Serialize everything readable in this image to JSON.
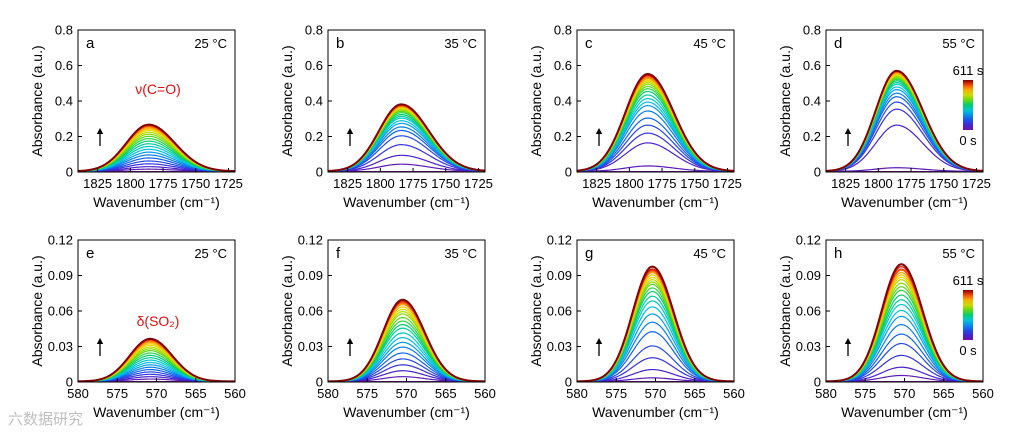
{
  "watermark": "六数据研究",
  "colors": {
    "annotation": "#e01010",
    "axis": "#000000"
  },
  "colorbar": {
    "top_label": "611 s",
    "bottom_label": "0 s"
  },
  "chart_data": [
    {
      "id": "a",
      "type": "line",
      "panel": "a",
      "temperature": "25 °C",
      "title": "",
      "xlabel": "Wavenumber (cm⁻¹)",
      "ylabel": "Absorbance (a.u.)",
      "xlim": [
        1840,
        1720
      ],
      "xticks": [
        1825,
        1800,
        1775,
        1750,
        1725
      ],
      "xtick_labels": [
        "1825",
        "1800",
        "1775",
        "1750",
        "1725"
      ],
      "ylim": [
        0,
        0.8
      ],
      "yticks": [
        0,
        0.2,
        0.4,
        0.6,
        0.8
      ],
      "ytick_labels": [
        "0",
        "0.2",
        "0.4",
        "0.6",
        "0.8"
      ],
      "annotation": "ν(C=O)",
      "time_range": [
        0,
        611
      ],
      "band": {
        "center": 1786,
        "sigma_left": 17,
        "sigma_right": 20,
        "base": 0.004
      },
      "series_peak_values": [
        0.0,
        0.012,
        0.026,
        0.042,
        0.058,
        0.075,
        0.092,
        0.108,
        0.124,
        0.14,
        0.155,
        0.17,
        0.184,
        0.197,
        0.209,
        0.22,
        0.23,
        0.238,
        0.245,
        0.251,
        0.256,
        0.26,
        0.263
      ]
    },
    {
      "id": "b",
      "type": "line",
      "panel": "b",
      "temperature": "35 °C",
      "title": "",
      "xlabel": "Wavenumber (cm⁻¹)",
      "ylabel": "Absorbance (a.u.)",
      "xlim": [
        1840,
        1720
      ],
      "xticks": [
        1825,
        1800,
        1775,
        1750,
        1725
      ],
      "xtick_labels": [
        "1825",
        "1800",
        "1775",
        "1750",
        "1725"
      ],
      "ylim": [
        0,
        0.8
      ],
      "yticks": [
        0,
        0.2,
        0.4,
        0.6,
        0.8
      ],
      "ytick_labels": [
        "0",
        "0.2",
        "0.4",
        "0.6",
        "0.8"
      ],
      "annotation": "",
      "time_range": [
        0,
        611
      ],
      "band": {
        "center": 1784,
        "sigma_left": 17,
        "sigma_right": 21,
        "base": 0.004
      },
      "series_peak_values": [
        0.0,
        0.04,
        0.09,
        0.15,
        0.2,
        0.23,
        0.25,
        0.27,
        0.285,
        0.3,
        0.31,
        0.32,
        0.33,
        0.338,
        0.345,
        0.35,
        0.355,
        0.36,
        0.364,
        0.368,
        0.371,
        0.374,
        0.377
      ]
    },
    {
      "id": "c",
      "type": "line",
      "panel": "c",
      "temperature": "45 °C",
      "title": "",
      "xlabel": "Wavenumber (cm⁻¹)",
      "ylabel": "Absorbance (a.u.)",
      "xlim": [
        1840,
        1720
      ],
      "xticks": [
        1825,
        1800,
        1775,
        1750,
        1725
      ],
      "xtick_labels": [
        "1825",
        "1800",
        "1775",
        "1750",
        "1725"
      ],
      "ylim": [
        0,
        0.8
      ],
      "yticks": [
        0,
        0.2,
        0.4,
        0.6,
        0.8
      ],
      "ytick_labels": [
        "0",
        "0.2",
        "0.4",
        "0.6",
        "0.8"
      ],
      "annotation": "",
      "time_range": [
        0,
        611
      ],
      "band": {
        "center": 1786,
        "sigma_left": 17,
        "sigma_right": 20,
        "base": 0.004
      },
      "series_peak_values": [
        0.0,
        0.03,
        0.16,
        0.215,
        0.26,
        0.3,
        0.34,
        0.37,
        0.39,
        0.41,
        0.43,
        0.45,
        0.465,
        0.478,
        0.49,
        0.5,
        0.508,
        0.516,
        0.523,
        0.53,
        0.536,
        0.542,
        0.548
      ]
    },
    {
      "id": "d",
      "type": "line",
      "panel": "d",
      "temperature": "55 °C",
      "title": "",
      "xlabel": "Wavenumber (cm⁻¹)",
      "ylabel": "Absorbance (a.u.)",
      "xlim": [
        1840,
        1720
      ],
      "xticks": [
        1825,
        1800,
        1775,
        1750,
        1725
      ],
      "xtick_labels": [
        "1825",
        "1800",
        "1775",
        "1750",
        "1725"
      ],
      "ylim": [
        0,
        0.8
      ],
      "yticks": [
        0,
        0.2,
        0.4,
        0.6,
        0.8
      ],
      "ytick_labels": [
        "0",
        "0.2",
        "0.4",
        "0.6",
        "0.8"
      ],
      "annotation": "",
      "time_range": [
        0,
        611
      ],
      "band": {
        "center": 1786,
        "sigma_left": 16,
        "sigma_right": 20,
        "base": 0.004
      },
      "series_peak_values": [
        0.0,
        0.02,
        0.26,
        0.35,
        0.39,
        0.42,
        0.44,
        0.46,
        0.475,
        0.49,
        0.5,
        0.51,
        0.518,
        0.525,
        0.532,
        0.538,
        0.544,
        0.55,
        0.554,
        0.558,
        0.561,
        0.564,
        0.566
      ]
    },
    {
      "id": "e",
      "type": "line",
      "panel": "e",
      "temperature": "25 °C",
      "title": "",
      "xlabel": "Wavenumber (cm⁻¹)",
      "ylabel": "Absorbance (a.u.)",
      "xlim": [
        580,
        560
      ],
      "xticks": [
        580,
        575,
        570,
        565,
        560
      ],
      "xtick_labels": [
        "580",
        "575",
        "570",
        "565",
        "560"
      ],
      "ylim": [
        0,
        0.12
      ],
      "yticks": [
        0,
        0.03,
        0.06,
        0.09,
        0.12
      ],
      "ytick_labels": [
        "0",
        "0.03",
        "0.06",
        "0.09",
        "0.12"
      ],
      "annotation": "δ(SO₂)",
      "time_range": [
        0,
        611
      ],
      "band": {
        "center": 570.8,
        "sigma_left": 2.6,
        "sigma_right": 2.8,
        "base": 0.0005
      },
      "series_peak_values": [
        0.0,
        0.002,
        0.004,
        0.006,
        0.008,
        0.01,
        0.012,
        0.014,
        0.016,
        0.018,
        0.02,
        0.022,
        0.024,
        0.026,
        0.0275,
        0.029,
        0.0305,
        0.0318,
        0.033,
        0.034,
        0.0348,
        0.0355,
        0.036
      ]
    },
    {
      "id": "f",
      "type": "line",
      "panel": "f",
      "temperature": "35 °C",
      "title": "",
      "xlabel": "Wavenumber (cm⁻¹)",
      "ylabel": "Absorbance (a.u.)",
      "xlim": [
        580,
        560
      ],
      "xticks": [
        580,
        575,
        570,
        565,
        560
      ],
      "xtick_labels": [
        "580",
        "575",
        "570",
        "565",
        "560"
      ],
      "ylim": [
        0,
        0.12
      ],
      "yticks": [
        0,
        0.03,
        0.06,
        0.09,
        0.12
      ],
      "ytick_labels": [
        "0",
        "0.03",
        "0.06",
        "0.09",
        "0.12"
      ],
      "annotation": "",
      "time_range": [
        0,
        611
      ],
      "band": {
        "center": 570.5,
        "sigma_left": 2.5,
        "sigma_right": 2.8,
        "base": 0.0005
      },
      "series_peak_values": [
        0.0,
        0.004,
        0.009,
        0.014,
        0.019,
        0.024,
        0.029,
        0.033,
        0.037,
        0.041,
        0.045,
        0.048,
        0.051,
        0.054,
        0.057,
        0.059,
        0.061,
        0.063,
        0.065,
        0.066,
        0.067,
        0.068,
        0.069
      ]
    },
    {
      "id": "g",
      "type": "line",
      "panel": "g",
      "temperature": "45 °C",
      "title": "",
      "xlabel": "Wavenumber (cm⁻¹)",
      "ylabel": "Absorbance (a.u.)",
      "xlim": [
        580,
        560
      ],
      "xticks": [
        580,
        575,
        570,
        565,
        560
      ],
      "xtick_labels": [
        "580",
        "575",
        "570",
        "565",
        "560"
      ],
      "ylim": [
        0,
        0.12
      ],
      "yticks": [
        0,
        0.03,
        0.06,
        0.09,
        0.12
      ],
      "ytick_labels": [
        "0",
        "0.03",
        "0.06",
        "0.09",
        "0.12"
      ],
      "annotation": "",
      "time_range": [
        0,
        611
      ],
      "band": {
        "center": 570.4,
        "sigma_left": 2.5,
        "sigma_right": 2.7,
        "base": 0.0005
      },
      "series_peak_values": [
        0.0,
        0.003,
        0.01,
        0.02,
        0.03,
        0.042,
        0.05,
        0.057,
        0.063,
        0.068,
        0.072,
        0.076,
        0.079,
        0.082,
        0.084,
        0.086,
        0.088,
        0.09,
        0.092,
        0.093,
        0.094,
        0.095,
        0.097
      ]
    },
    {
      "id": "h",
      "type": "line",
      "panel": "h",
      "temperature": "55 °C",
      "title": "",
      "xlabel": "Wavenumber (cm⁻¹)",
      "ylabel": "Absorbance (a.u.)",
      "xlim": [
        580,
        560
      ],
      "xticks": [
        580,
        575,
        570,
        565,
        560
      ],
      "xtick_labels": [
        "580",
        "575",
        "570",
        "565",
        "560"
      ],
      "ylim": [
        0,
        0.12
      ],
      "yticks": [
        0,
        0.03,
        0.06,
        0.09,
        0.12
      ],
      "ytick_labels": [
        "0",
        "0.03",
        "0.06",
        "0.09",
        "0.12"
      ],
      "annotation": "",
      "time_range": [
        0,
        611
      ],
      "band": {
        "center": 570.4,
        "sigma_left": 2.5,
        "sigma_right": 2.7,
        "base": 0.0005
      },
      "series_peak_values": [
        0.0,
        0.005,
        0.012,
        0.022,
        0.032,
        0.04,
        0.048,
        0.055,
        0.06,
        0.065,
        0.069,
        0.073,
        0.077,
        0.08,
        0.083,
        0.086,
        0.088,
        0.09,
        0.092,
        0.094,
        0.095,
        0.097,
        0.099
      ]
    }
  ]
}
